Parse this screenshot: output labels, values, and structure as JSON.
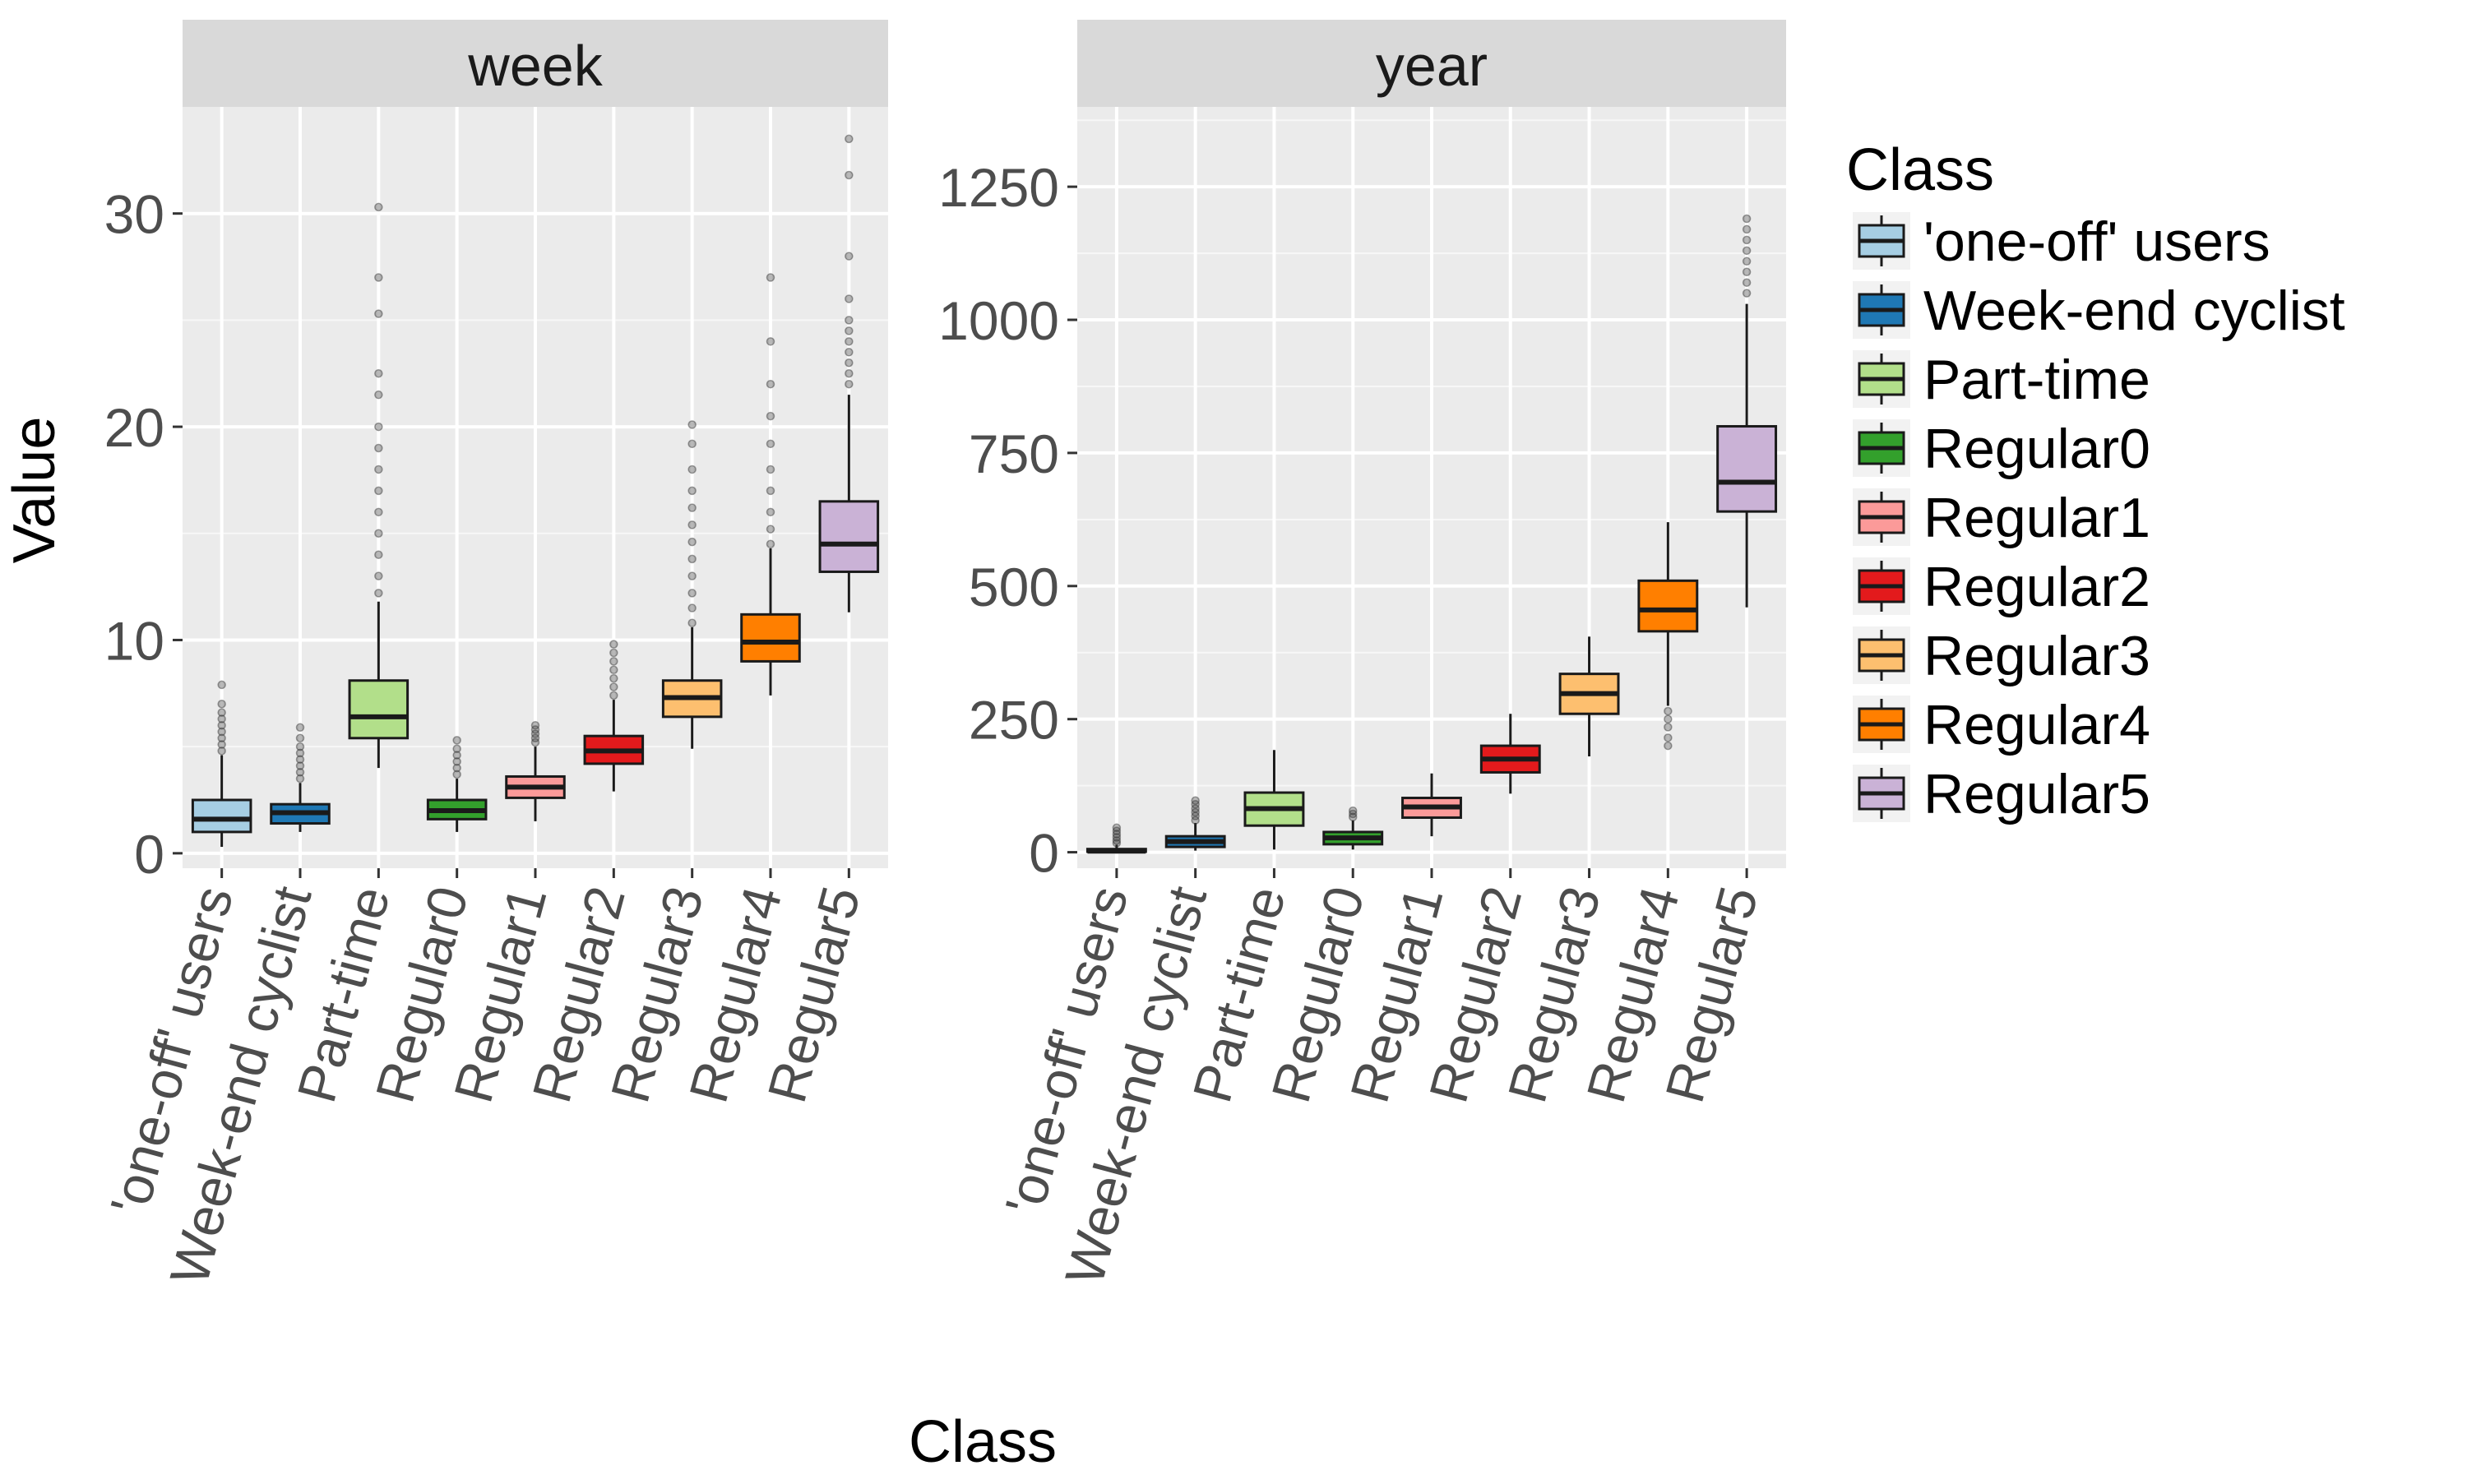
{
  "chart_data": {
    "type": "boxplot",
    "xlabel": "Class",
    "ylabel": "Value",
    "legend": {
      "title": "Class",
      "position": "right",
      "entries": [
        "'one-off' users",
        "Week-end cyclist",
        "Part-time",
        "Regular0",
        "Regular1",
        "Regular2",
        "Regular3",
        "Regular4",
        "Regular5"
      ],
      "colors": [
        "#a6cee3",
        "#1f78b4",
        "#b2df8a",
        "#33a02c",
        "#fb9a99",
        "#e31a1c",
        "#fdbf6f",
        "#ff7f00",
        "#cab2d6"
      ]
    },
    "panels": [
      {
        "strip": "week",
        "ylim": [
          -0.7,
          35
        ],
        "yticks": [
          0,
          10,
          20,
          30
        ],
        "ytick_labels": [
          "0",
          "10",
          "20",
          "30"
        ],
        "categories": [
          "'one-off' users",
          "Week-end cyclist",
          "Part-time",
          "Regular0",
          "Regular1",
          "Regular2",
          "Regular3",
          "Regular4",
          "Regular5"
        ],
        "boxes": [
          {
            "min": 0.3,
            "q1": 1.0,
            "median": 1.6,
            "q3": 2.5,
            "max": 4.6,
            "outliers": [
              4.8,
              5.1,
              5.4,
              5.7,
              6.0,
              6.3,
              6.6,
              7.0,
              7.9
            ]
          },
          {
            "min": 1.0,
            "q1": 1.4,
            "median": 1.9,
            "q3": 2.3,
            "max": 3.3,
            "outliers": [
              3.5,
              3.8,
              4.1,
              4.4,
              4.7,
              5.0,
              5.4,
              5.9
            ]
          },
          {
            "min": 4.0,
            "q1": 5.4,
            "median": 6.4,
            "q3": 8.1,
            "max": 11.8,
            "outliers": [
              12.2,
              13.0,
              14.0,
              15.0,
              16.0,
              17.0,
              18.0,
              19.0,
              20.0,
              21.5,
              22.5,
              25.3,
              27.0,
              30.3
            ]
          },
          {
            "min": 1.0,
            "q1": 1.6,
            "median": 2.0,
            "q3": 2.5,
            "max": 3.5,
            "outliers": [
              3.7,
              4.0,
              4.3,
              4.6,
              4.9,
              5.3
            ]
          },
          {
            "min": 1.5,
            "q1": 2.6,
            "median": 3.1,
            "q3": 3.6,
            "max": 5.0,
            "outliers": [
              5.2,
              5.4,
              5.6,
              5.8,
              6.0
            ]
          },
          {
            "min": 2.9,
            "q1": 4.2,
            "median": 4.8,
            "q3": 5.5,
            "max": 7.2,
            "outliers": [
              7.4,
              7.8,
              8.2,
              8.6,
              9.0,
              9.4,
              9.8
            ]
          },
          {
            "min": 4.9,
            "q1": 6.4,
            "median": 7.3,
            "q3": 8.1,
            "max": 10.6,
            "outliers": [
              10.8,
              11.5,
              12.2,
              13.0,
              13.8,
              14.6,
              15.4,
              16.2,
              17.0,
              18.0,
              19.2,
              20.1
            ]
          },
          {
            "min": 7.4,
            "q1": 9.0,
            "median": 9.9,
            "q3": 11.2,
            "max": 14.3,
            "outliers": [
              14.5,
              15.2,
              16.0,
              17.0,
              18.0,
              19.2,
              20.5,
              22.0,
              24.0,
              27.0
            ]
          },
          {
            "min": 11.3,
            "q1": 13.2,
            "median": 14.5,
            "q3": 16.5,
            "max": 21.5,
            "outliers": [
              22.0,
              22.5,
              23.0,
              23.5,
              24.0,
              24.5,
              25.0,
              26.0,
              28.0,
              31.8,
              33.5
            ]
          }
        ]
      },
      {
        "strip": "year",
        "ylim": [
          -30,
          1400
        ],
        "yticks": [
          0,
          250,
          500,
          750,
          1000,
          1250
        ],
        "ytick_labels": [
          "0",
          "250",
          "500",
          "750",
          "1000",
          "1250"
        ],
        "categories": [
          "'one-off' users",
          "Week-end cyclist",
          "Part-time",
          "Regular0",
          "Regular1",
          "Regular2",
          "Regular3",
          "Regular4",
          "Regular5"
        ],
        "boxes": [
          {
            "min": 0,
            "q1": 1,
            "median": 2,
            "q3": 6,
            "max": 14,
            "outliers": [
              17,
              22,
              28,
              34,
              40,
              46
            ]
          },
          {
            "min": 3,
            "q1": 10,
            "median": 20,
            "q3": 30,
            "max": 55,
            "outliers": [
              60,
              68,
              75,
              82,
              90,
              97
            ]
          },
          {
            "min": 5,
            "q1": 50,
            "median": 82,
            "q3": 112,
            "max": 192,
            "outliers": []
          },
          {
            "min": 5,
            "q1": 15,
            "median": 27,
            "q3": 38,
            "max": 60,
            "outliers": [
              66,
              72,
              78
            ]
          },
          {
            "min": 30,
            "q1": 65,
            "median": 85,
            "q3": 102,
            "max": 148,
            "outliers": []
          },
          {
            "min": 110,
            "q1": 150,
            "median": 175,
            "q3": 200,
            "max": 260,
            "outliers": []
          },
          {
            "min": 180,
            "q1": 260,
            "median": 298,
            "q3": 335,
            "max": 405,
            "outliers": []
          },
          {
            "min": 275,
            "q1": 415,
            "median": 455,
            "q3": 510,
            "max": 620,
            "outliers": [
              200,
              215,
              235,
              250,
              265
            ]
          },
          {
            "min": 460,
            "q1": 640,
            "median": 695,
            "q3": 800,
            "max": 1030,
            "outliers": [
              1050,
              1070,
              1090,
              1110,
              1130,
              1150,
              1170,
              1190
            ]
          }
        ]
      }
    ]
  }
}
